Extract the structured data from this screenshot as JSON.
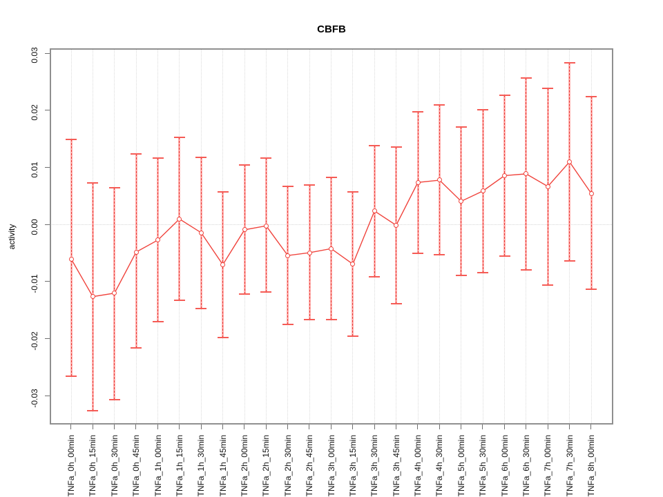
{
  "title": "CBFB",
  "ylabel": "activity",
  "colors": {
    "series_red": "#f0433c",
    "errorbar_pink": "#ffb3b1",
    "errorbar_dash_red": "#e8413c",
    "cap_red": "#f55b55",
    "grid_gray": "#dadada",
    "frame_gray": "#8f8f8f"
  },
  "chart_data": {
    "type": "line",
    "subtype": "points-with-error-bars",
    "title": "CBFB",
    "xlabel": "",
    "ylabel": "activity",
    "ylim": [
      -0.035,
      0.031
    ],
    "yticks": [
      -0.03,
      -0.02,
      -0.01,
      0.0,
      0.01,
      0.02,
      0.03
    ],
    "ytick_labels": [
      "-0.03",
      "-0.02",
      "-0.01",
      "0.00",
      "0.01",
      "0.02",
      "0.03"
    ],
    "grid": "light dotted vertical gridline at every category; dotted horizontal line at y=0; no legend",
    "categories": [
      "TNFa_0h_00min",
      "TNFa_0h_15min",
      "TNFa_0h_30min",
      "TNFa_0h_45min",
      "TNFa_1h_00min",
      "TNFa_1h_15min",
      "TNFa_1h_30min",
      "TNFa_1h_45min",
      "TNFa_2h_00min",
      "TNFa_2h_15min",
      "TNFa_2h_30min",
      "TNFa_2h_45min",
      "TNFa_3h_00min",
      "TNFa_3h_15min",
      "TNFa_3h_30min",
      "TNFa_3h_45min",
      "TNFa_4h_00min",
      "TNFa_4h_30min",
      "TNFa_5h_00min",
      "TNFa_5h_30min",
      "TNFa_6h_00min",
      "TNFa_6h_30min",
      "TNFa_7h_00min",
      "TNFa_7h_30min",
      "TNFa_8h_00min"
    ],
    "series": [
      {
        "name": "activity",
        "values": [
          -0.006,
          -0.0126,
          -0.012,
          -0.0048,
          -0.0027,
          0.001,
          -0.0014,
          -0.007,
          -0.0009,
          -0.0002,
          -0.0054,
          -0.0049,
          -0.0042,
          -0.0069,
          0.0024,
          -0.0001,
          0.0074,
          0.0078,
          0.0041,
          0.0059,
          0.0086,
          0.0089,
          0.0067,
          0.011,
          0.0055
        ],
        "upper": [
          0.0149,
          0.0073,
          0.0065,
          0.0124,
          0.0117,
          0.0153,
          0.0118,
          0.0057,
          0.0104,
          0.0117,
          0.0067,
          0.007,
          0.0083,
          0.0058,
          0.0139,
          0.0136,
          0.0198,
          0.021,
          0.0171,
          0.0201,
          0.0227,
          0.0257,
          0.0239,
          0.0283,
          0.0224
        ],
        "lower": [
          -0.0266,
          -0.0326,
          -0.0306,
          -0.0216,
          -0.017,
          -0.0133,
          -0.0147,
          -0.0198,
          -0.0121,
          -0.0118,
          -0.0175,
          -0.0166,
          -0.0166,
          -0.0195,
          -0.0091,
          -0.0138,
          -0.005,
          -0.0053,
          -0.0089,
          -0.0084,
          -0.0055,
          -0.0079,
          -0.0106,
          -0.0064,
          -0.0113
        ]
      }
    ]
  }
}
